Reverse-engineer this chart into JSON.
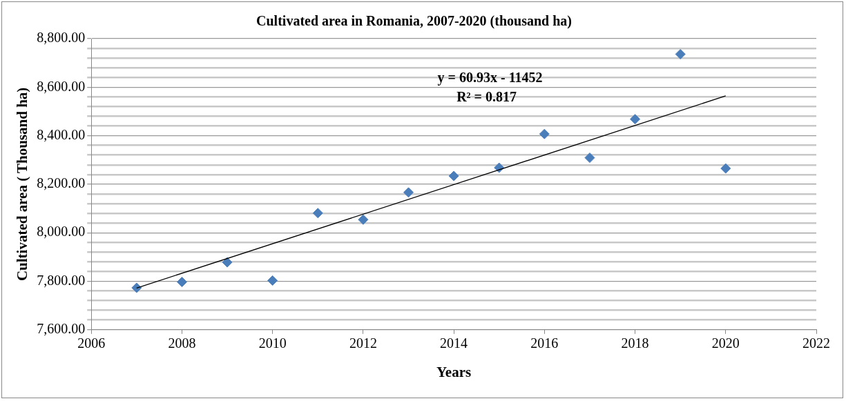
{
  "chart_data": {
    "type": "scatter",
    "title": "Cultivated area in Romania, 2007-2020 (thousand ha)",
    "xlabel": "Years",
    "ylabel": "Cultivated area ( Thousand ha)",
    "x": [
      2007,
      2008,
      2009,
      2010,
      2011,
      2012,
      2013,
      2014,
      2015,
      2016,
      2017,
      2018,
      2019,
      2020
    ],
    "series": [
      {
        "color": "#4a7ebb",
        "marker": "diamond",
        "values": [
          7773,
          7797,
          7878,
          7803,
          8081,
          8054,
          8166,
          8234,
          8268,
          8407,
          8309,
          8468,
          8736,
          8265
        ]
      },
      {
        "type": "line",
        "color": "#000000",
        "x": [
          2007,
          2020
        ],
        "values": [
          7772,
          8564
        ],
        "marker": "none"
      }
    ],
    "annotations": [
      "y = 60.93x - 11452",
      "R² = 0.817"
    ],
    "xlim": [
      2006,
      2022
    ],
    "xticks": [
      2006,
      2008,
      2010,
      2012,
      2014,
      2016,
      2018,
      2020,
      2022
    ],
    "ylim": [
      7600,
      8800
    ],
    "yticks": [
      {
        "value": 7600,
        "label": "7,600.00"
      },
      {
        "value": 7640,
        "label": null
      },
      {
        "value": 7680,
        "label": null
      },
      {
        "value": 7720,
        "label": null
      },
      {
        "value": 7760,
        "label": null
      },
      {
        "value": 7800,
        "label": "7,800.00"
      },
      {
        "value": 7840,
        "label": null
      },
      {
        "value": 7880,
        "label": null
      },
      {
        "value": 7920,
        "label": null
      },
      {
        "value": 7960,
        "label": null
      },
      {
        "value": 8000,
        "label": "8,000.00"
      },
      {
        "value": 8040,
        "label": null
      },
      {
        "value": 8080,
        "label": null
      },
      {
        "value": 8120,
        "label": null
      },
      {
        "value": 8160,
        "label": null
      },
      {
        "value": 8200,
        "label": "8,200.00"
      },
      {
        "value": 8240,
        "label": null
      },
      {
        "value": 8280,
        "label": null
      },
      {
        "value": 8320,
        "label": null
      },
      {
        "value": 8360,
        "label": null
      },
      {
        "value": 8400,
        "label": "8,400.00"
      },
      {
        "value": 8440,
        "label": null
      },
      {
        "value": 8480,
        "label": null
      },
      {
        "value": 8520,
        "label": null
      },
      {
        "value": 8560,
        "label": null
      },
      {
        "value": 8600,
        "label": "8,600.00"
      },
      {
        "value": 8640,
        "label": null
      },
      {
        "value": 8680,
        "label": null
      },
      {
        "value": 8720,
        "label": null
      },
      {
        "value": 8760,
        "label": null
      },
      {
        "value": 8800,
        "label": "8,800.00"
      }
    ],
    "grid": "y",
    "legend": false
  }
}
